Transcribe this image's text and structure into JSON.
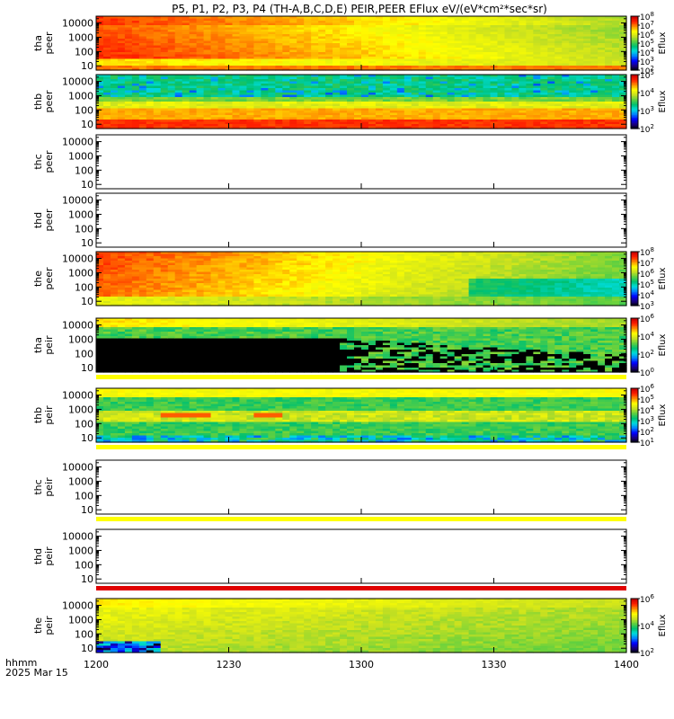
{
  "title": "P5, P1, P2, P3, P4 (TH-A,B,C,D,E) PEIR,PEER EFlux eV/(eV*cm²*sec*sr)",
  "colors": {
    "rainbow": [
      "#000000",
      "#1a0080",
      "#0000ff",
      "#0080ff",
      "#00dcdc",
      "#00c070",
      "#60d040",
      "#c8e020",
      "#ffff00",
      "#ff9000",
      "#ff2000",
      "#c80000"
    ],
    "background": "#ffffff",
    "line": "#000000"
  },
  "chart_data": {
    "type": "heatmap",
    "x_axis": {
      "title_lines": [
        "hhmm",
        "2025 Mar 15"
      ],
      "ticks": [
        "1200",
        "1230",
        "1300",
        "1330",
        "1400"
      ],
      "range": [
        "12:00",
        "14:00"
      ]
    },
    "y_ticks": [
      "10",
      "100",
      "1000",
      "10000"
    ],
    "panels": [
      {
        "labels": [
          "tha",
          "peer"
        ],
        "data": "filled",
        "pattern": "peer_a",
        "ylim": [
          5,
          30000
        ],
        "log_y": true,
        "colorbar": {
          "label": "Eflux",
          "ticks": [
            "10^2",
            "10^3",
            "10^4",
            "10^5",
            "10^6",
            "10^7",
            "10^8"
          ],
          "max_exp": 8,
          "min_exp": 2
        }
      },
      {
        "labels": [
          "thb",
          "peer"
        ],
        "data": "filled",
        "pattern": "peer_b",
        "ylim": [
          5,
          30000
        ],
        "log_y": true,
        "colorbar": {
          "label": "Eflux",
          "ticks": [
            "10^2",
            "10^3",
            "10^4",
            "10^5"
          ],
          "max_exp": 5,
          "min_exp": 2
        }
      },
      {
        "labels": [
          "thc",
          "peer"
        ],
        "data": "empty",
        "ylim": [
          5,
          30000
        ],
        "log_y": true
      },
      {
        "labels": [
          "thd",
          "peer"
        ],
        "data": "empty",
        "ylim": [
          5,
          30000
        ],
        "log_y": true
      },
      {
        "labels": [
          "the",
          "peer"
        ],
        "data": "filled",
        "pattern": "peer_e",
        "ylim": [
          5,
          30000
        ],
        "log_y": true,
        "colorbar": {
          "label": "Eflux",
          "ticks": [
            "10^3",
            "10^4",
            "10^5",
            "10^6",
            "10^7",
            "10^8"
          ],
          "max_exp": 8,
          "min_exp": 3
        }
      },
      {
        "labels": [
          "tha",
          "peir"
        ],
        "data": "filled",
        "pattern": "peir_a",
        "ylim": [
          5,
          30000
        ],
        "log_y": true,
        "colorbar": {
          "label": "Eflux",
          "ticks": [
            "10^0",
            "10^2",
            "10^4",
            "10^6"
          ],
          "max_exp": 6,
          "min_exp": 0
        }
      },
      {
        "labels": [
          "thb",
          "peir"
        ],
        "data": "filled",
        "pattern": "peir_b",
        "ylim": [
          5,
          30000
        ],
        "log_y": true,
        "colorbar": {
          "label": "Eflux",
          "ticks": [
            "10^1",
            "10^2",
            "10^3",
            "10^4",
            "10^5",
            "10^6"
          ],
          "max_exp": 6,
          "min_exp": 1
        }
      },
      {
        "labels": [
          "thc",
          "peir"
        ],
        "data": "empty",
        "ylim": [
          5,
          30000
        ],
        "log_y": true
      },
      {
        "labels": [
          "thd",
          "peir"
        ],
        "data": "empty",
        "ylim": [
          5,
          30000
        ],
        "log_y": true
      },
      {
        "labels": [
          "the",
          "peir"
        ],
        "data": "filled",
        "pattern": "peir_e",
        "ylim": [
          5,
          30000
        ],
        "log_y": true,
        "colorbar": {
          "label": "Eflux",
          "ticks": [
            "10^2",
            "10^4",
            "10^6"
          ],
          "max_exp": 6,
          "min_exp": 2
        }
      }
    ]
  }
}
